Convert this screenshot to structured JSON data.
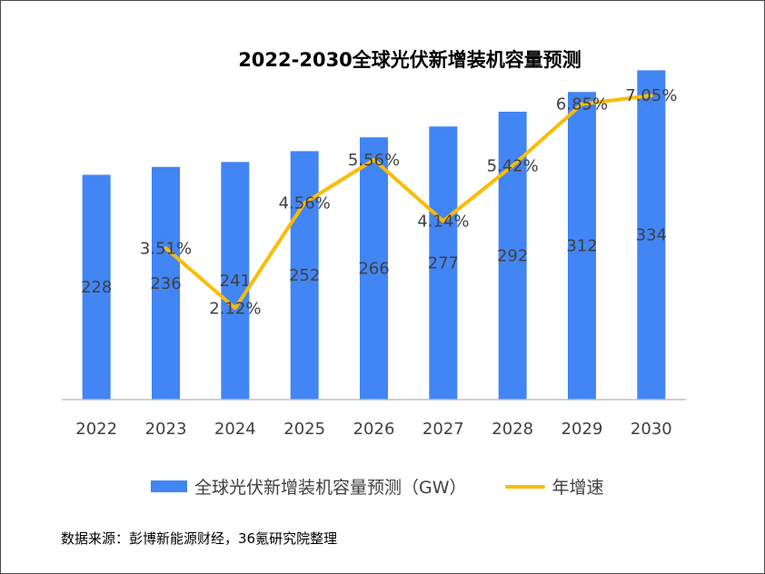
{
  "title": "2022-2030全球光伏新增装机容量预测",
  "source_note": "数据来源：彭博新能源财经，36氪研究院整理",
  "colors": {
    "bar": "#4285f4",
    "line": "#fbbc05",
    "axis": "#bfbfbf",
    "label": "#404040"
  },
  "chart_data": {
    "type": "bar",
    "categories": [
      "2022",
      "2023",
      "2024",
      "2025",
      "2026",
      "2027",
      "2028",
      "2029",
      "2030"
    ],
    "series": [
      {
        "name": "全球光伏新增装机容量预测（GW）",
        "type": "bar",
        "axis": "left",
        "values": [
          228,
          236,
          241,
          252,
          266,
          277,
          292,
          312,
          334
        ]
      },
      {
        "name": "年增速",
        "type": "line",
        "axis": "right",
        "values": [
          null,
          3.51,
          2.12,
          4.56,
          5.56,
          4.14,
          5.42,
          6.85,
          7.05
        ],
        "labels": [
          "",
          "3.51%",
          "2.12%",
          "4.56%",
          "5.56%",
          "4.14%",
          "5.42%",
          "6.85%",
          "7.05%"
        ]
      }
    ],
    "ylim_left": [
      0,
      350
    ],
    "ylim_right": [
      0,
      8
    ],
    "legend_position": "bottom",
    "grid": false,
    "title": "2022-2030全球光伏新增装机容量预测",
    "xlabel": "",
    "ylabel": ""
  }
}
